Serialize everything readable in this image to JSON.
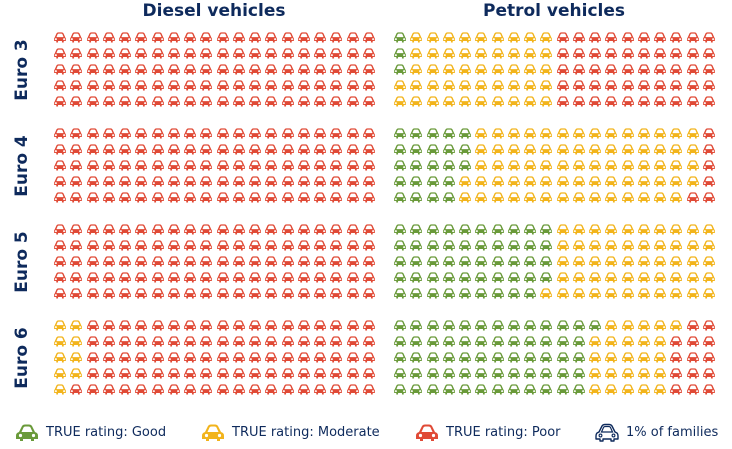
{
  "chart_data": {
    "type": "pictogram",
    "columns": [
      "Diesel vehicles",
      "Petrol vehicles"
    ],
    "rows": [
      "Euro 3",
      "Euro 4",
      "Euro 5",
      "Euro 6"
    ],
    "icon_unit": "1% of families",
    "legend": {
      "good": "TRUE rating: Good",
      "moderate": "TRUE rating: Moderate",
      "poor": "TRUE rating: Poor",
      "unit": "1% of families"
    },
    "colors": {
      "good": "#6a9a3a",
      "moderate": "#f2b41c",
      "poor": "#e04a36",
      "unit": "#0e2a5c",
      "title": "#0e2a5c"
    },
    "data": {
      "Diesel vehicles": {
        "Euro 3": {
          "good": 0,
          "moderate": 0,
          "poor": 100
        },
        "Euro 4": {
          "good": 0,
          "moderate": 0,
          "poor": 100
        },
        "Euro 5": {
          "good": 0,
          "moderate": 0,
          "poor": 100
        },
        "Euro 6": {
          "good": 0,
          "moderate": 9,
          "poor": 91
        }
      },
      "Petrol vehicles": {
        "Euro 3": {
          "good": 3,
          "moderate": 47,
          "poor": 50
        },
        "Euro 4": {
          "good": 23,
          "moderate": 71,
          "poor": 6
        },
        "Euro 5": {
          "good": 49,
          "moderate": 51,
          "poor": 0
        },
        "Euro 6": {
          "good": 61,
          "moderate": 25,
          "poor": 14
        }
      }
    },
    "grid": {
      "columns": 20,
      "rows": 5,
      "fill_order": "column-major"
    }
  }
}
